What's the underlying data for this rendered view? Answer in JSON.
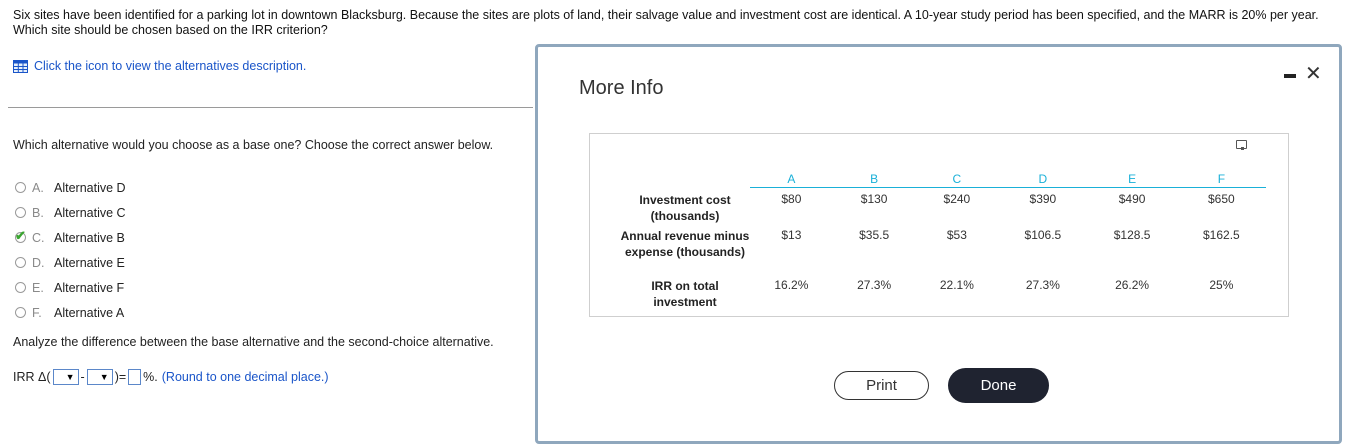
{
  "problem": {
    "text": "Six sites have been identified for a parking lot in downtown Blacksburg. Because the sites are plots of land, their salvage value and investment cost are identical. A 10-year study period has been specified, and the MARR is 20% per year. Which site should be chosen based on the IRR criterion?"
  },
  "hint": {
    "text": "Click the icon to view the alternatives description.",
    "icon": "table-icon"
  },
  "question": {
    "text": "Which alternative would you choose as a base one? Choose the correct answer below."
  },
  "options": [
    {
      "letter": "A.",
      "label": "Alternative D",
      "checked": false
    },
    {
      "letter": "B.",
      "label": "Alternative C",
      "checked": false
    },
    {
      "letter": "C.",
      "label": "Alternative B",
      "checked": true
    },
    {
      "letter": "D.",
      "label": "Alternative E",
      "checked": false
    },
    {
      "letter": "E.",
      "label": "Alternative F",
      "checked": false
    },
    {
      "letter": "F.",
      "label": "Alternative A",
      "checked": false
    }
  ],
  "check_mark": "✔",
  "analyze": {
    "text": "Analyze the difference between the base alternative and the second-choice alternative."
  },
  "irr": {
    "prefix": "IRR Δ(",
    "dash": "-",
    "close": ")",
    "equals": "=",
    "percent": "%.",
    "round_note": "(Round to one decimal place.)",
    "dropdown_glyph": "▼"
  },
  "modal": {
    "title": "More Info",
    "close_glyph": "✕",
    "print_label": "Print",
    "done_label": "Done",
    "table": {
      "headers": [
        "A",
        "B",
        "C",
        "D",
        "E",
        "F"
      ],
      "rows": [
        {
          "label": "Investment cost (thousands)",
          "values": [
            "$80",
            "$130",
            "$240",
            "$390",
            "$490",
            "$650"
          ]
        },
        {
          "label": "Annual revenue minus expense (thousands)",
          "values": [
            "$13",
            "$35.5",
            "$53",
            "$106.5",
            "$128.5",
            "$162.5"
          ]
        },
        {
          "label": "IRR on total investment",
          "values": [
            "16.2%",
            "27.3%",
            "22.1%",
            "27.3%",
            "26.2%",
            "25%"
          ]
        }
      ]
    }
  },
  "colors": {
    "link": "#1a55c9",
    "header_accent": "#1ab0d8",
    "done_button": "#1f2330",
    "check": "#3aa530",
    "modal_border": "#8fa7bd"
  }
}
